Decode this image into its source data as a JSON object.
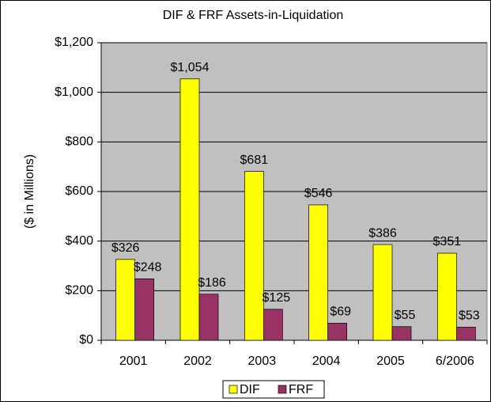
{
  "chart_data": {
    "type": "bar",
    "title": "DIF & FRF Assets-in-Liquidation",
    "y_label": "($ in Millions)",
    "categories": [
      "2001",
      "2002",
      "2003",
      "2004",
      "2005",
      "6/2006"
    ],
    "series": [
      {
        "name": "DIF",
        "color": "#ffff00",
        "values": [
          326,
          1054,
          681,
          546,
          386,
          351
        ],
        "value_labels": [
          "$326",
          "$1,054",
          "$681",
          "$546",
          "$386",
          "$351"
        ]
      },
      {
        "name": "FRF",
        "color": "#993366",
        "values": [
          248,
          186,
          125,
          69,
          55,
          53
        ],
        "value_labels": [
          "$248",
          "$186",
          "$125",
          "$69",
          "$55",
          "$53"
        ]
      }
    ],
    "ylim": [
      0,
      1200
    ],
    "yticks": [
      {
        "value": 0,
        "label": "$0"
      },
      {
        "value": 200,
        "label": "$200"
      },
      {
        "value": 400,
        "label": "$400"
      },
      {
        "value": 600,
        "label": "$600"
      },
      {
        "value": 800,
        "label": "$800"
      },
      {
        "value": 1000,
        "label": "$1,000"
      },
      {
        "value": 1200,
        "label": "$1,200"
      }
    ],
    "grid": true,
    "plot_background": "#c0c0c0",
    "legend": "bottom"
  }
}
